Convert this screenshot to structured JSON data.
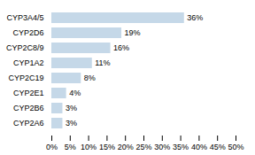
{
  "chart_data": {
    "type": "bar",
    "orientation": "horizontal",
    "categories": [
      "CYP3A4/5",
      "CYP2D6",
      "CYP2C8/9",
      "CYP1A2",
      "CYP2C19",
      "CYP2E1",
      "CYP2B6",
      "CYP2A6"
    ],
    "values": [
      36,
      19,
      16,
      11,
      8,
      4,
      3,
      3
    ],
    "value_labels": [
      "36%",
      "19%",
      "16%",
      "11%",
      "8%",
      "4%",
      "3%",
      "3%"
    ],
    "data_labels": true,
    "color": "#c5d8e8",
    "xlim": [
      0,
      50
    ],
    "xticks": [
      {
        "value": 0,
        "label": "0%"
      },
      {
        "value": 5,
        "label": "5%"
      },
      {
        "value": 10,
        "label": "10%"
      },
      {
        "value": 15,
        "label": "15%"
      },
      {
        "value": 20,
        "label": "20%"
      },
      {
        "value": 25,
        "label": "25%"
      },
      {
        "value": 30,
        "label": "30%"
      },
      {
        "value": 35,
        "label": "35%"
      },
      {
        "value": 40,
        "label": "40%"
      },
      {
        "value": 45,
        "label": "45%"
      },
      {
        "value": 50,
        "label": "50%"
      }
    ],
    "grid": false
  }
}
